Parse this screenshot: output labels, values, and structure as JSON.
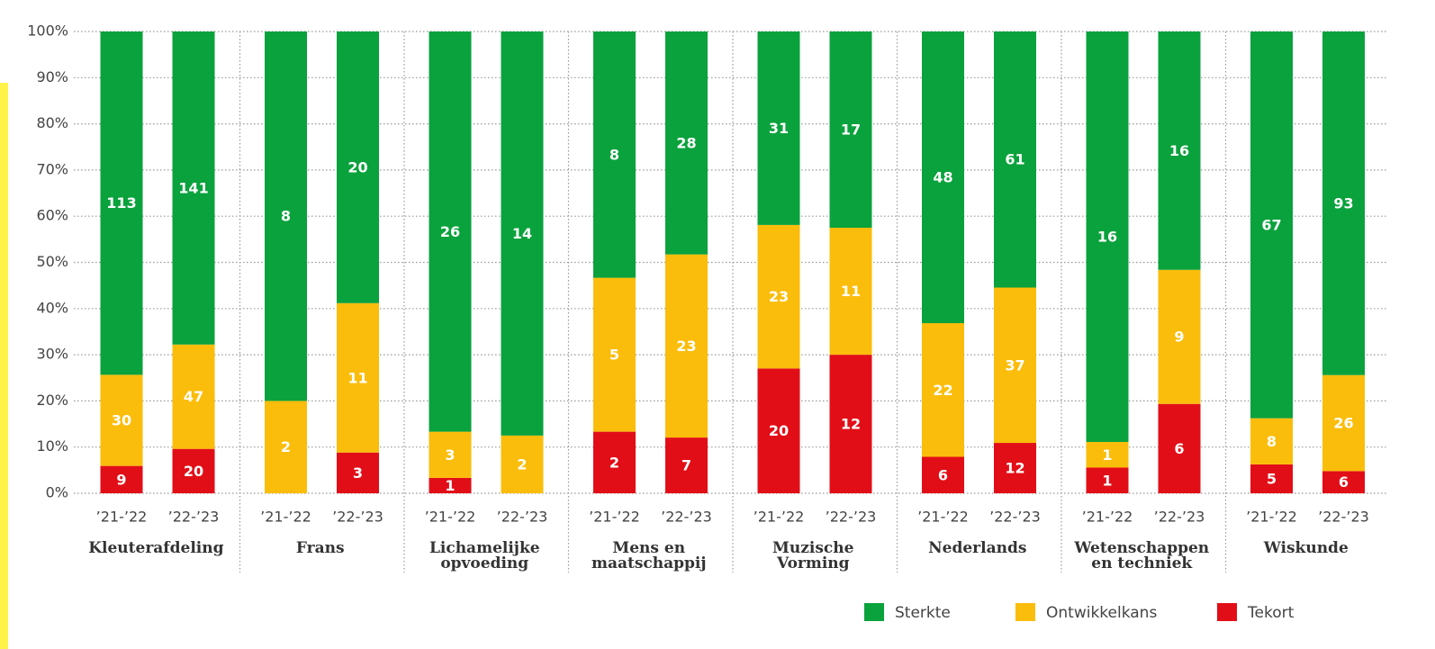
{
  "chart_data": {
    "type": "bar",
    "stack": "percent",
    "groups": [
      "Kleuterafdeling",
      "Frans",
      "Lichamelijke opvoeding",
      "Mens en maatschappij",
      "Muzische Vorming",
      "Nederlands",
      "Wetenschappen en techniek",
      "Wiskunde"
    ],
    "categories": [
      "’21-’22",
      "’22-’23",
      "’21-’22",
      "’22-’23",
      "’21-’22",
      "’22-’23",
      "’21-’22",
      "’22-’23",
      "’21-’22",
      "’22-’23",
      "’21-’22",
      "’22-’23",
      "’21-’22",
      "’22-’23",
      "’21-’22",
      "’22-’23"
    ],
    "series": [
      {
        "name": "Sterkte",
        "color": "#0aa23c",
        "values": [
          113,
          141,
          8,
          20,
          26,
          14,
          8,
          28,
          31,
          17,
          48,
          61,
          16,
          16,
          67,
          93
        ]
      },
      {
        "name": "Ontwikkelkans",
        "color": "#fbbd0b",
        "values": [
          30,
          47,
          2,
          11,
          3,
          2,
          5,
          23,
          23,
          11,
          22,
          37,
          1,
          9,
          8,
          26
        ]
      },
      {
        "name": "Tekort",
        "color": "#e20e17",
        "values": [
          9,
          20,
          0,
          3,
          1,
          0,
          2,
          7,
          20,
          12,
          6,
          12,
          1,
          6,
          5,
          6
        ]
      }
    ],
    "ylim": [
      0,
      100
    ],
    "yticks": [
      {
        "value": 0,
        "label": "0%"
      },
      {
        "value": 10,
        "label": "10%"
      },
      {
        "value": 20,
        "label": "20%"
      },
      {
        "value": 30,
        "label": "30%"
      },
      {
        "value": 40,
        "label": "40%"
      },
      {
        "value": 50,
        "label": "50%"
      },
      {
        "value": 60,
        "label": "60%"
      },
      {
        "value": 70,
        "label": "70%"
      },
      {
        "value": 80,
        "label": "80%"
      },
      {
        "value": 90,
        "label": "90%"
      },
      {
        "value": 100,
        "label": "100%"
      }
    ],
    "grid": true,
    "legend": "bottom-right"
  }
}
